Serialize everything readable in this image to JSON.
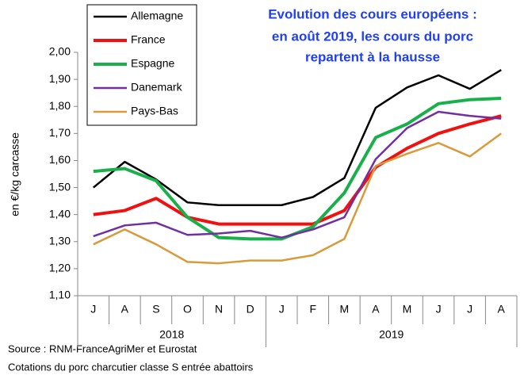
{
  "chart_data": {
    "type": "line",
    "title": [
      "Evolution des cours européens :",
      "en août 2019, les cours du porc",
      "repartent à la hausse"
    ],
    "y_label": "en €/kg carcasse",
    "categories": [
      "J",
      "A",
      "S",
      "O",
      "N",
      "D",
      "J",
      "F",
      "M",
      "A",
      "M",
      "J",
      "J",
      "A"
    ],
    "years": [
      "2018",
      "2019"
    ],
    "series": [
      {
        "name": "Allemagne",
        "color": "#000000",
        "line_width": 2.5,
        "values": [
          1.5,
          1.595,
          1.53,
          1.445,
          1.435,
          1.435,
          1.435,
          1.465,
          1.535,
          1.795,
          1.87,
          1.915,
          1.865,
          1.935
        ]
      },
      {
        "name": "France",
        "color": "#f01010",
        "line_width": 4,
        "values": [
          1.4,
          1.415,
          1.46,
          1.39,
          1.365,
          1.365,
          1.365,
          1.365,
          1.415,
          1.575,
          1.645,
          1.7,
          1.735,
          1.765
        ]
      },
      {
        "name": "Espagne",
        "color": "#19b04b",
        "line_width": 4,
        "values": [
          1.56,
          1.57,
          1.525,
          1.39,
          1.315,
          1.31,
          1.31,
          1.355,
          1.48,
          1.685,
          1.735,
          1.81,
          1.825,
          1.83
        ]
      },
      {
        "name": "Danemark",
        "color": "#7030a0",
        "line_width": 2.5,
        "values": [
          1.32,
          1.36,
          1.37,
          1.325,
          1.33,
          1.34,
          1.315,
          1.345,
          1.39,
          1.605,
          1.72,
          1.78,
          1.765,
          1.755
        ]
      },
      {
        "name": "Pays-Bas",
        "color": "#d89a3a",
        "line_width": 2.5,
        "values": [
          1.29,
          1.345,
          1.29,
          1.225,
          1.22,
          1.23,
          1.23,
          1.25,
          1.31,
          1.58,
          1.625,
          1.665,
          1.615,
          1.7
        ]
      }
    ],
    "ylim": [
      1.1,
      2.0
    ],
    "yticks": [
      {
        "value": 1.1,
        "label": "1,10"
      },
      {
        "value": 1.2,
        "label": "1,20"
      },
      {
        "value": 1.3,
        "label": "1,30"
      },
      {
        "value": 1.4,
        "label": "1,40"
      },
      {
        "value": 1.5,
        "label": "1,50"
      },
      {
        "value": 1.6,
        "label": "1,60"
      },
      {
        "value": 1.7,
        "label": "1,70"
      },
      {
        "value": 1.8,
        "label": "1,80"
      },
      {
        "value": 1.9,
        "label": "1,90"
      },
      {
        "value": 2.0,
        "label": "2,00"
      }
    ],
    "grid": false,
    "legend": "top-left",
    "notes": [
      "Source : RNM-FranceAgriMer et Eurostat",
      "Cotations du porc charcutier classe S entrée abattoirs"
    ]
  }
}
